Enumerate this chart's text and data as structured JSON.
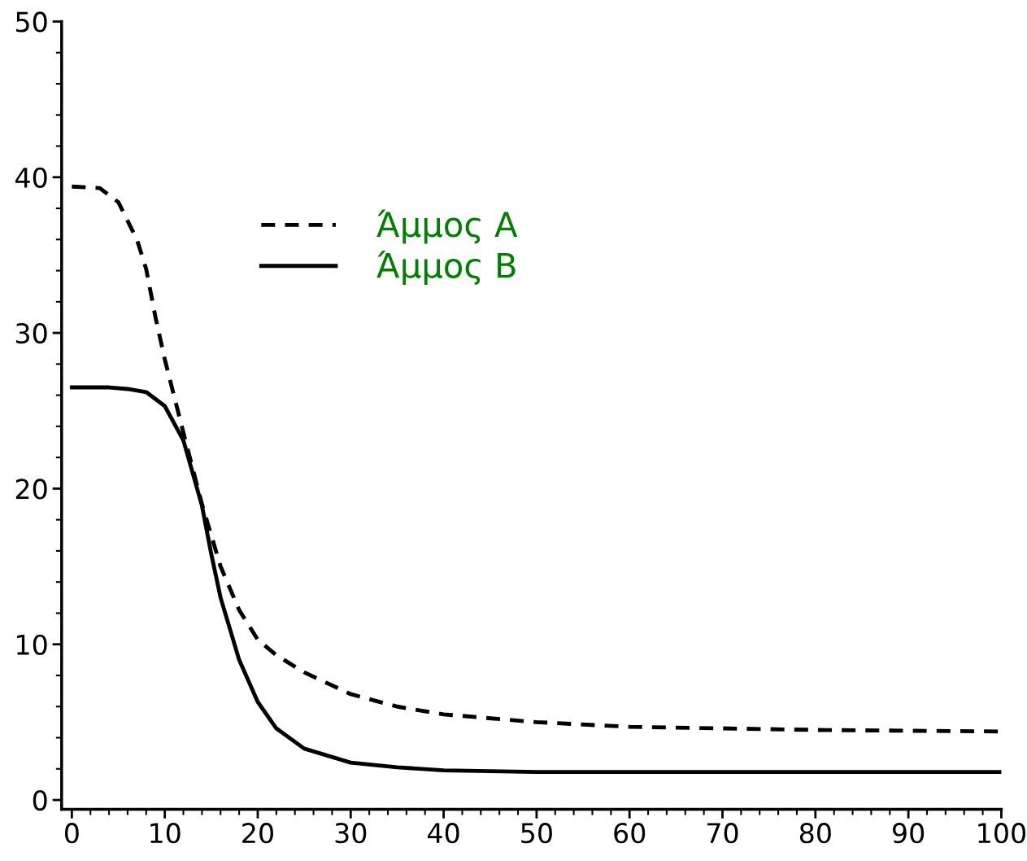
{
  "chart_data": {
    "type": "line",
    "xlim": [
      -1.1,
      100
    ],
    "ylim": [
      -0.6,
      50
    ],
    "xticks": [
      0,
      10,
      20,
      30,
      40,
      50,
      60,
      70,
      80,
      90,
      100
    ],
    "yticks": [
      0,
      10,
      20,
      30,
      40,
      50
    ],
    "legend": "top left",
    "grid": false,
    "marker": "none",
    "series": [
      {
        "name": "Άμμος Α",
        "color": "#000000",
        "line_style": "dashed",
        "x": [
          0,
          3,
          5,
          7,
          8,
          9,
          10,
          12,
          14,
          16,
          18,
          20,
          22,
          25,
          30,
          35,
          40,
          50,
          60,
          70,
          80,
          90,
          100
        ],
        "values": [
          39.4,
          39.3,
          38.4,
          36.0,
          34.1,
          31.0,
          28.3,
          23.6,
          19.0,
          15.0,
          12.2,
          10.3,
          9.3,
          8.2,
          6.8,
          6.0,
          5.5,
          5.0,
          4.7,
          4.6,
          4.5,
          4.45,
          4.4
        ]
      },
      {
        "name": "Άμμος Β",
        "color": "#000000",
        "line_style": "solid",
        "x": [
          0,
          4,
          6,
          8,
          10,
          12,
          14,
          15,
          16,
          18,
          20,
          22,
          25,
          30,
          35,
          40,
          50,
          60,
          80,
          100
        ],
        "values": [
          26.5,
          26.5,
          26.4,
          26.2,
          25.3,
          23.1,
          18.9,
          15.8,
          13.0,
          9.0,
          6.3,
          4.6,
          3.3,
          2.4,
          2.1,
          1.9,
          1.8,
          1.8,
          1.8,
          1.8
        ]
      }
    ]
  }
}
